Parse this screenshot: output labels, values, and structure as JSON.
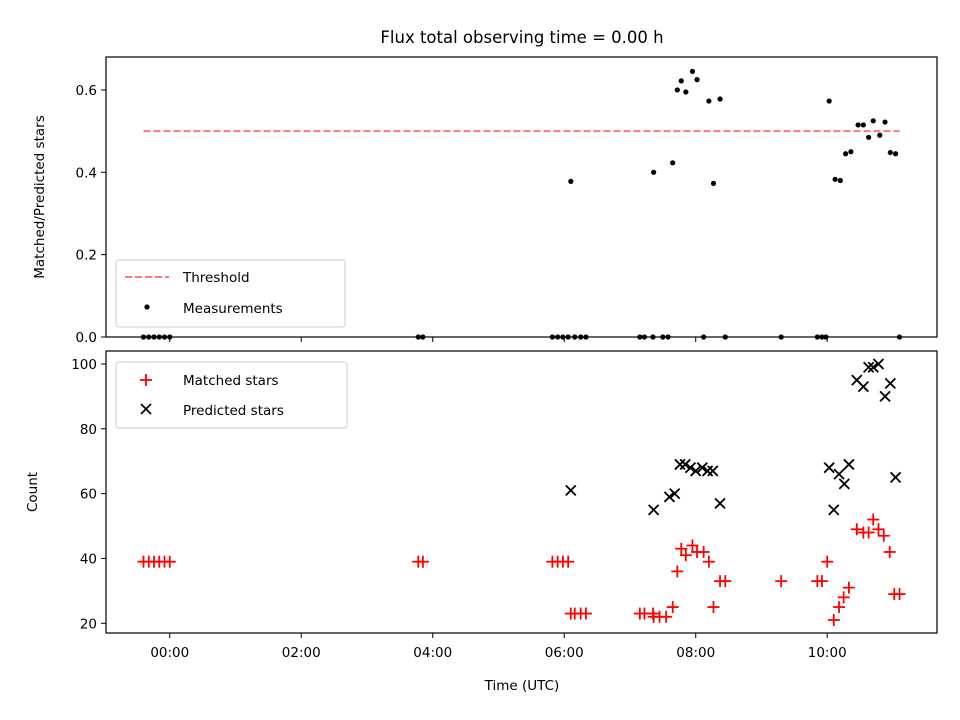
{
  "chart_data": [
    {
      "type": "scatter",
      "title": "Flux total observing time = 0.00 h",
      "xlabel": "",
      "ylabel": "Matched/Predicted stars",
      "ylim": [
        0,
        0.68
      ],
      "yticks": [
        0.0,
        0.2,
        0.4,
        0.6
      ],
      "ytick_labels": [
        "0.0",
        "0.2",
        "0.4",
        "0.6"
      ],
      "x_unit": "hours (UTC)",
      "xlim": [
        -0.97,
        11.67
      ],
      "threshold": {
        "name": "Threshold",
        "y": 0.5,
        "x_range": [
          -0.4,
          11.1
        ],
        "color": "#ff7a7a"
      },
      "legend": {
        "position": "lower-left",
        "entries": [
          "Threshold",
          "Measurements"
        ]
      },
      "series": [
        {
          "name": "Measurements",
          "color": "#000000",
          "points": [
            [
              -0.4,
              0.0
            ],
            [
              -0.32,
              0.0
            ],
            [
              -0.24,
              0.0
            ],
            [
              -0.16,
              0.0
            ],
            [
              -0.08,
              0.0
            ],
            [
              0.0,
              0.0
            ],
            [
              3.78,
              0.0
            ],
            [
              3.85,
              0.0
            ],
            [
              5.82,
              0.0
            ],
            [
              5.9,
              0.0
            ],
            [
              5.98,
              0.0
            ],
            [
              6.06,
              0.0
            ],
            [
              6.1,
              0.378
            ],
            [
              6.16,
              0.0
            ],
            [
              6.25,
              0.0
            ],
            [
              6.33,
              0.0
            ],
            [
              7.15,
              0.0
            ],
            [
              7.22,
              0.0
            ],
            [
              7.35,
              0.0
            ],
            [
              7.36,
              0.4
            ],
            [
              7.5,
              0.0
            ],
            [
              7.58,
              0.0
            ],
            [
              7.65,
              0.423
            ],
            [
              7.72,
              0.6
            ],
            [
              7.78,
              0.622
            ],
            [
              7.85,
              0.595
            ],
            [
              7.95,
              0.645
            ],
            [
              8.02,
              0.625
            ],
            [
              8.12,
              0.0
            ],
            [
              8.2,
              0.573
            ],
            [
              8.27,
              0.373
            ],
            [
              8.37,
              0.578
            ],
            [
              8.45,
              0.0
            ],
            [
              9.3,
              0.0
            ],
            [
              9.85,
              0.0
            ],
            [
              9.92,
              0.0
            ],
            [
              9.98,
              0.0
            ],
            [
              10.03,
              0.573
            ],
            [
              10.12,
              0.383
            ],
            [
              10.2,
              0.38
            ],
            [
              10.28,
              0.445
            ],
            [
              10.36,
              0.45
            ],
            [
              10.47,
              0.515
            ],
            [
              10.55,
              0.515
            ],
            [
              10.63,
              0.485
            ],
            [
              10.7,
              0.525
            ],
            [
              10.8,
              0.49
            ],
            [
              10.88,
              0.522
            ],
            [
              10.96,
              0.448
            ],
            [
              11.04,
              0.445
            ],
            [
              11.1,
              0.0
            ]
          ]
        }
      ]
    },
    {
      "type": "scatter",
      "title": "",
      "xlabel": "Time (UTC)",
      "ylabel": "Count",
      "ylim": [
        17,
        104
      ],
      "yticks": [
        20,
        40,
        60,
        80,
        100
      ],
      "ytick_labels": [
        "20",
        "40",
        "60",
        "80",
        "100"
      ],
      "x_unit": "hours (UTC)",
      "xlim": [
        -0.97,
        11.67
      ],
      "xticks": [
        0,
        2,
        4,
        6,
        8,
        10
      ],
      "xtick_labels": [
        "00:00",
        "02:00",
        "04:00",
        "06:00",
        "08:00",
        "10:00"
      ],
      "legend": {
        "position": "upper-left",
        "entries": [
          "Matched stars",
          "Predicted stars"
        ]
      },
      "series": [
        {
          "name": "Matched stars",
          "marker": "plus",
          "color": "#ff0000",
          "points": [
            [
              -0.4,
              39
            ],
            [
              -0.32,
              39
            ],
            [
              -0.24,
              39
            ],
            [
              -0.16,
              39
            ],
            [
              -0.08,
              39
            ],
            [
              0.0,
              39
            ],
            [
              3.78,
              39
            ],
            [
              3.85,
              39
            ],
            [
              5.82,
              39
            ],
            [
              5.9,
              39
            ],
            [
              5.98,
              39
            ],
            [
              6.06,
              39
            ],
            [
              6.1,
              23
            ],
            [
              6.16,
              23
            ],
            [
              6.25,
              23
            ],
            [
              6.33,
              23
            ],
            [
              7.15,
              23
            ],
            [
              7.22,
              23
            ],
            [
              7.35,
              23
            ],
            [
              7.36,
              22
            ],
            [
              7.45,
              22
            ],
            [
              7.55,
              22
            ],
            [
              7.65,
              25
            ],
            [
              7.72,
              36
            ],
            [
              7.78,
              43
            ],
            [
              7.85,
              41
            ],
            [
              7.95,
              44
            ],
            [
              8.02,
              42
            ],
            [
              8.12,
              42
            ],
            [
              8.2,
              39
            ],
            [
              8.27,
              25
            ],
            [
              8.37,
              33
            ],
            [
              8.45,
              33
            ],
            [
              9.3,
              33
            ],
            [
              9.85,
              33
            ],
            [
              9.92,
              33
            ],
            [
              10.0,
              39
            ],
            [
              10.1,
              21
            ],
            [
              10.18,
              25
            ],
            [
              10.25,
              28
            ],
            [
              10.33,
              31
            ],
            [
              10.45,
              49
            ],
            [
              10.55,
              48
            ],
            [
              10.63,
              48
            ],
            [
              10.7,
              52
            ],
            [
              10.78,
              49
            ],
            [
              10.86,
              47
            ],
            [
              10.95,
              42
            ],
            [
              11.02,
              29
            ],
            [
              11.1,
              29
            ]
          ]
        },
        {
          "name": "Predicted stars",
          "marker": "x",
          "color": "#000000",
          "points": [
            [
              6.1,
              61
            ],
            [
              7.36,
              55
            ],
            [
              7.6,
              59
            ],
            [
              7.68,
              60
            ],
            [
              7.76,
              69
            ],
            [
              7.84,
              69
            ],
            [
              7.92,
              68
            ],
            [
              8.0,
              67
            ],
            [
              8.1,
              68
            ],
            [
              8.18,
              67
            ],
            [
              8.26,
              67
            ],
            [
              8.37,
              57
            ],
            [
              10.03,
              68
            ],
            [
              10.1,
              55
            ],
            [
              10.18,
              66
            ],
            [
              10.26,
              63
            ],
            [
              10.33,
              69
            ],
            [
              10.45,
              95
            ],
            [
              10.55,
              93
            ],
            [
              10.63,
              99
            ],
            [
              10.7,
              99
            ],
            [
              10.78,
              100
            ],
            [
              10.88,
              90
            ],
            [
              10.96,
              94
            ],
            [
              11.04,
              65
            ]
          ]
        }
      ]
    }
  ]
}
